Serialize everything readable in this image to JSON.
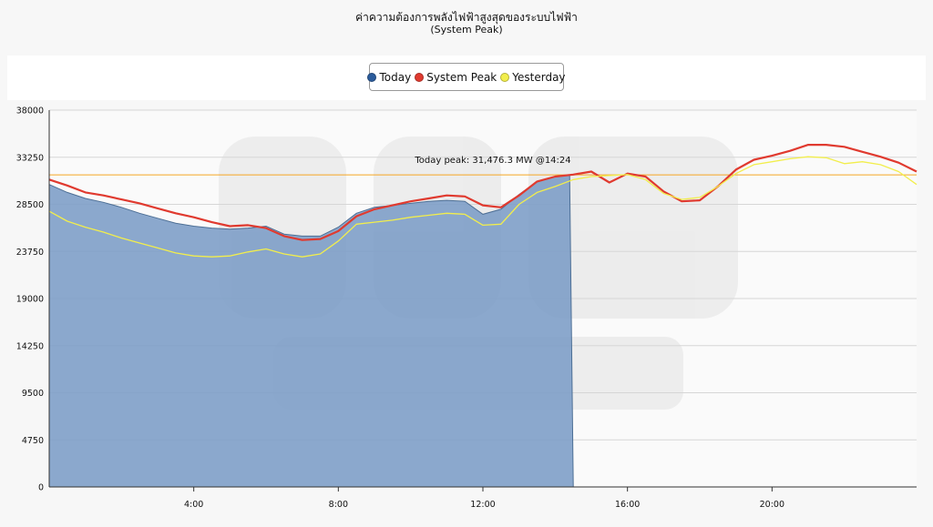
{
  "chart_data": {
    "type": "line",
    "title": "ค่าความต้องการพลังไฟฟ้าสูงสุดของระบบไฟฟ้า",
    "subtitle": "(System Peak)",
    "xlabel": "",
    "ylabel": "",
    "xlim": [
      0,
      24
    ],
    "ylim": [
      0,
      38000
    ],
    "y_ticks": [
      0,
      4750,
      9500,
      14250,
      19000,
      23750,
      28500,
      33250,
      38000
    ],
    "x_ticks": [
      {
        "value": 4,
        "label": "4:00"
      },
      {
        "value": 8,
        "label": "8:00"
      },
      {
        "value": 12,
        "label": "12:00"
      },
      {
        "value": 16,
        "label": "16:00"
      },
      {
        "value": 20,
        "label": "20:00"
      }
    ],
    "grid": true,
    "legend_position": "top-center",
    "reference_line": {
      "value": 31476.3,
      "color": "#f5a623"
    },
    "annotation": "Today peak: 31,476.3  MW  @14:24",
    "series": [
      {
        "name": "Today",
        "kind": "area",
        "color": "#2b5c9c",
        "fill": "#7e9fc8",
        "x": [
          0,
          0.5,
          1,
          1.5,
          2,
          2.5,
          3,
          3.5,
          4,
          4.5,
          5,
          5.5,
          6,
          6.5,
          7,
          7.5,
          8,
          8.5,
          9,
          9.5,
          10,
          10.5,
          11,
          11.5,
          12,
          12.5,
          13,
          13.5,
          14,
          14.4,
          14.5
        ],
        "values": [
          30500,
          29700,
          29100,
          28700,
          28200,
          27600,
          27100,
          26600,
          26300,
          26100,
          26000,
          26100,
          26300,
          25500,
          25300,
          25300,
          26200,
          27600,
          28200,
          28400,
          28600,
          28800,
          28900,
          28800,
          27500,
          28000,
          29500,
          30800,
          31300,
          31476.3,
          0
        ]
      },
      {
        "name": "System Peak",
        "kind": "line",
        "color": "#e03a2f",
        "x": [
          0,
          0.5,
          1,
          1.5,
          2,
          2.5,
          3,
          3.5,
          4,
          4.5,
          5,
          5.5,
          6,
          6.5,
          7,
          7.5,
          8,
          8.5,
          9,
          9.5,
          10,
          10.5,
          11,
          11.5,
          12,
          12.5,
          13,
          13.5,
          14,
          14.5,
          15,
          15.5,
          16,
          16.5,
          17,
          17.5,
          18,
          18.5,
          19,
          19.5,
          20,
          20.5,
          21,
          21.5,
          22,
          22.5,
          23,
          23.5,
          24
        ],
        "values": [
          31000,
          30400,
          29700,
          29400,
          29000,
          28600,
          28100,
          27600,
          27200,
          26700,
          26300,
          26400,
          26100,
          25300,
          24900,
          25000,
          25800,
          27300,
          28000,
          28400,
          28800,
          29100,
          29400,
          29300,
          28400,
          28200,
          29400,
          30800,
          31300,
          31500,
          31800,
          30700,
          31600,
          31300,
          29800,
          28800,
          28900,
          30300,
          32000,
          33000,
          33400,
          33900,
          34500,
          34500,
          34300,
          33800,
          33300,
          32700,
          31800
        ]
      },
      {
        "name": "Yesterday",
        "kind": "line",
        "color": "#f2ee4c",
        "x": [
          0,
          0.5,
          1,
          1.5,
          2,
          2.5,
          3,
          3.5,
          4,
          4.5,
          5,
          5.5,
          6,
          6.5,
          7,
          7.5,
          8,
          8.5,
          9,
          9.5,
          10,
          10.5,
          11,
          11.5,
          12,
          12.5,
          13,
          13.5,
          14,
          14.5,
          15,
          15.5,
          16,
          16.5,
          17,
          17.5,
          18,
          18.5,
          19,
          19.5,
          20,
          20.5,
          21,
          21.5,
          22,
          22.5,
          23,
          23.5,
          24
        ],
        "values": [
          27800,
          26800,
          26200,
          25700,
          25100,
          24600,
          24100,
          23600,
          23300,
          23200,
          23300,
          23700,
          24000,
          23500,
          23200,
          23500,
          24800,
          26500,
          26700,
          26900,
          27200,
          27400,
          27600,
          27500,
          26400,
          26500,
          28500,
          29700,
          30300,
          31000,
          31300,
          31400,
          31500,
          31000,
          29600,
          29000,
          29200,
          30300,
          31600,
          32500,
          32800,
          33100,
          33300,
          33200,
          32600,
          32800,
          32500,
          31800,
          30500
        ]
      }
    ]
  }
}
